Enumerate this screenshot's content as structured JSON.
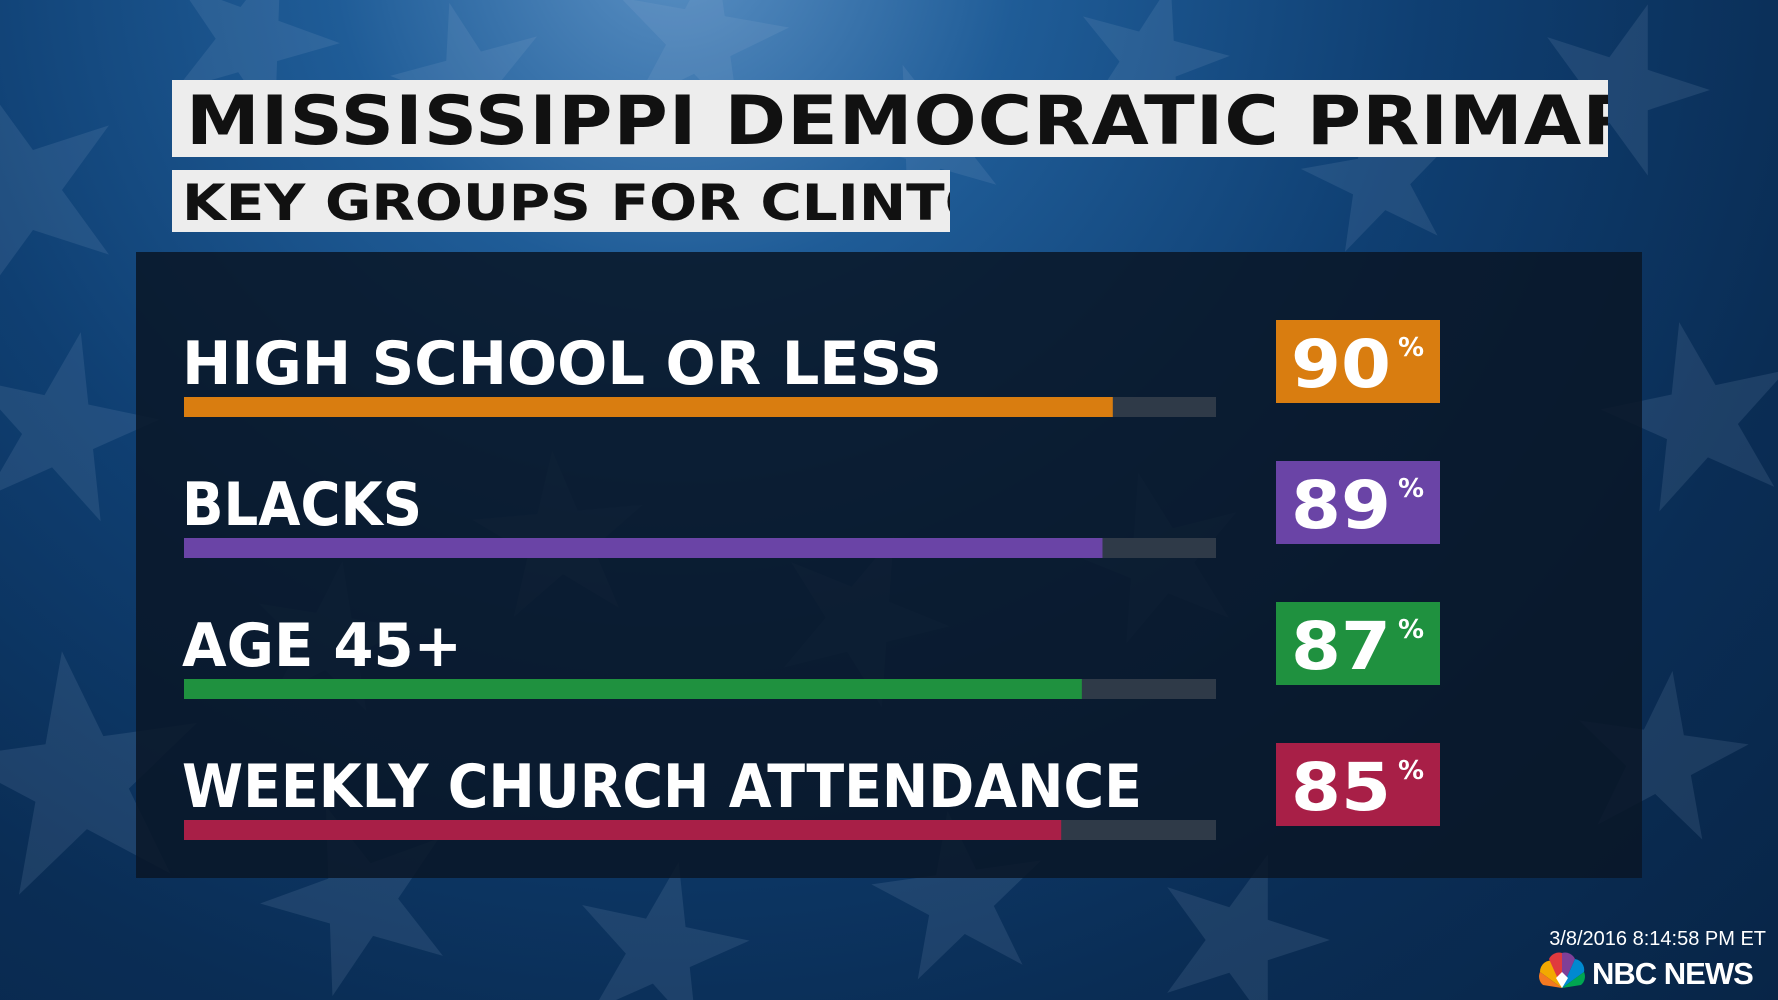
{
  "title": "MISSISSIPPI DEMOCRATIC PRIMARY",
  "subtitle": "KEY GROUPS FOR CLINTON",
  "timestamp": "3/8/2016 8:14:58 PM ET",
  "network": "NBC NEWS",
  "logo_icon": "peacock-icon",
  "colors": {
    "high_school": "#d97d10",
    "blacks": "#6a44a6",
    "age45": "#1f913f",
    "church": "#a81f47",
    "track": "#2f3a48"
  },
  "chart_data": {
    "type": "bar",
    "orientation": "horizontal",
    "title": "MISSISSIPPI DEMOCRATIC PRIMARY",
    "subtitle": "KEY GROUPS FOR CLINTON",
    "categories": [
      "HIGH SCHOOL OR LESS",
      "BLACKS",
      "AGE 45+",
      "WEEKLY CHURCH ATTENDANCE"
    ],
    "values": [
      90,
      89,
      87,
      85
    ],
    "unit": "%",
    "colors": [
      "#d97d10",
      "#6a44a6",
      "#1f913f",
      "#a81f47"
    ],
    "xlim": [
      0,
      100
    ]
  }
}
